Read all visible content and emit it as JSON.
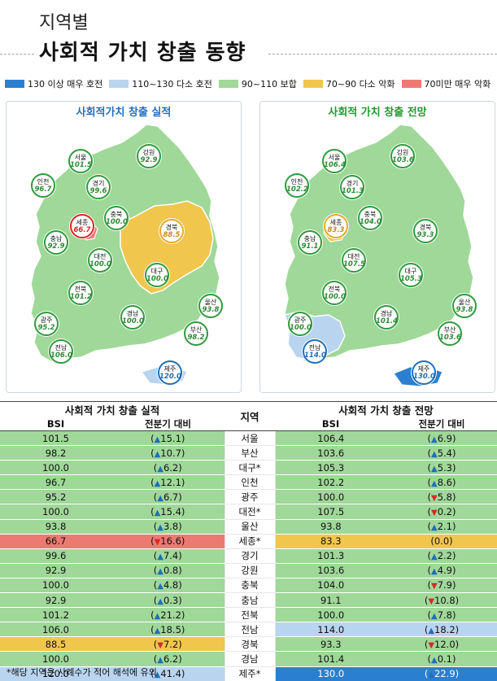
{
  "header": {
    "subtitle": "지역별",
    "title": "사회적 가치 창출 동향"
  },
  "legend": [
    {
      "label": "130 이상 매우 호전",
      "color": "#2b7fd0"
    },
    {
      "label": "110~130 다소 호전",
      "color": "#b9d4ef"
    },
    {
      "label": "90~110 보합",
      "color": "#9fd898"
    },
    {
      "label": "70~90 다소 악화",
      "color": "#f0c64d"
    },
    {
      "label": "70미만 매우 악화",
      "color": "#ec7a72"
    }
  ],
  "map_actual": {
    "title": "사회적가치 창출 실적",
    "badges": [
      {
        "name": "서울",
        "value": "101.5",
        "level": "green"
      },
      {
        "name": "강원",
        "value": "92.9",
        "level": "green"
      },
      {
        "name": "인천",
        "value": "96.7",
        "level": "green"
      },
      {
        "name": "경기",
        "value": "99.6",
        "level": "green"
      },
      {
        "name": "세종",
        "value": "66.7",
        "level": "red"
      },
      {
        "name": "충북",
        "value": "100.0",
        "level": "green"
      },
      {
        "name": "경북",
        "value": "88.5",
        "level": "orange"
      },
      {
        "name": "충남",
        "value": "92.9",
        "level": "green"
      },
      {
        "name": "대전",
        "value": "100.0",
        "level": "green"
      },
      {
        "name": "대구",
        "value": "100.0",
        "level": "green"
      },
      {
        "name": "전북",
        "value": "101.2",
        "level": "green"
      },
      {
        "name": "울산",
        "value": "93.8",
        "level": "green"
      },
      {
        "name": "경남",
        "value": "100.0",
        "level": "green"
      },
      {
        "name": "광주",
        "value": "95.2",
        "level": "green"
      },
      {
        "name": "부산",
        "value": "98.2",
        "level": "green"
      },
      {
        "name": "전남",
        "value": "106.0",
        "level": "green"
      },
      {
        "name": "제주",
        "value": "120.0",
        "level": "blue"
      }
    ]
  },
  "map_forecast": {
    "title": "사회적 가치 창출 전망",
    "badges": [
      {
        "name": "서울",
        "value": "106.4",
        "level": "green"
      },
      {
        "name": "강원",
        "value": "103.6",
        "level": "green"
      },
      {
        "name": "인천",
        "value": "102.2",
        "level": "green"
      },
      {
        "name": "경기",
        "value": "101.3",
        "level": "green"
      },
      {
        "name": "세종",
        "value": "83.3",
        "level": "orange"
      },
      {
        "name": "충북",
        "value": "104.0",
        "level": "green"
      },
      {
        "name": "경북",
        "value": "93.3",
        "level": "green"
      },
      {
        "name": "충남",
        "value": "91.1",
        "level": "green"
      },
      {
        "name": "대전",
        "value": "107.5",
        "level": "green"
      },
      {
        "name": "대구",
        "value": "105.3",
        "level": "green"
      },
      {
        "name": "전북",
        "value": "100.0",
        "level": "green"
      },
      {
        "name": "울산",
        "value": "93.8",
        "level": "green"
      },
      {
        "name": "경남",
        "value": "101.4",
        "level": "green"
      },
      {
        "name": "광주",
        "value": "100.0",
        "level": "green"
      },
      {
        "name": "부산",
        "value": "103.6",
        "level": "green"
      },
      {
        "name": "전남",
        "value": "114.0",
        "level": "blue"
      },
      {
        "name": "제주",
        "value": "130.0",
        "level": "blue"
      }
    ]
  },
  "table": {
    "actual_header": "사회적 가치 창출 실적",
    "forecast_header": "사회적 가치 창출 전망",
    "region_header": "지역",
    "bsi_header": "BSI",
    "prev_header": "전분기 대비",
    "rows": [
      {
        "region": "서울",
        "a_bsi": "101.5",
        "a_dir": "up",
        "a_chg": "15.1",
        "a_color": "green",
        "f_bsi": "106.4",
        "f_dir": "up",
        "f_chg": "6.9",
        "f_color": "green"
      },
      {
        "region": "부산",
        "a_bsi": "98.2",
        "a_dir": "up",
        "a_chg": "10.7",
        "a_color": "green",
        "f_bsi": "103.6",
        "f_dir": "up",
        "f_chg": "5.4",
        "f_color": "green"
      },
      {
        "region": "대구*",
        "a_bsi": "100.0",
        "a_dir": "up",
        "a_chg": "6.2",
        "a_color": "green",
        "f_bsi": "105.3",
        "f_dir": "up",
        "f_chg": "5.3",
        "f_color": "green"
      },
      {
        "region": "인천",
        "a_bsi": "96.7",
        "a_dir": "up",
        "a_chg": "12.1",
        "a_color": "green",
        "f_bsi": "102.2",
        "f_dir": "up",
        "f_chg": "8.6",
        "f_color": "green"
      },
      {
        "region": "광주",
        "a_bsi": "95.2",
        "a_dir": "up",
        "a_chg": "6.7",
        "a_color": "green",
        "f_bsi": "100.0",
        "f_dir": "down",
        "f_chg": "5.8",
        "f_color": "green"
      },
      {
        "region": "대전*",
        "a_bsi": "100.0",
        "a_dir": "up",
        "a_chg": "15.4",
        "a_color": "green",
        "f_bsi": "107.5",
        "f_dir": "down",
        "f_chg": "0.2",
        "f_color": "green"
      },
      {
        "region": "울산",
        "a_bsi": "93.8",
        "a_dir": "up",
        "a_chg": "3.8",
        "a_color": "green",
        "f_bsi": "93.8",
        "f_dir": "up",
        "f_chg": "2.1",
        "f_color": "green"
      },
      {
        "region": "세종*",
        "a_bsi": "66.7",
        "a_dir": "down",
        "a_chg": "16.6",
        "a_color": "red",
        "f_bsi": "83.3",
        "f_dir": "none",
        "f_chg": "0.0",
        "f_color": "orange"
      },
      {
        "region": "경기",
        "a_bsi": "99.6",
        "a_dir": "up",
        "a_chg": "7.4",
        "a_color": "green",
        "f_bsi": "101.3",
        "f_dir": "up",
        "f_chg": "2.2",
        "f_color": "green"
      },
      {
        "region": "강원",
        "a_bsi": "92.9",
        "a_dir": "up",
        "a_chg": "0.8",
        "a_color": "green",
        "f_bsi": "103.6",
        "f_dir": "up",
        "f_chg": "4.9",
        "f_color": "green"
      },
      {
        "region": "충북",
        "a_bsi": "100.0",
        "a_dir": "up",
        "a_chg": "4.8",
        "a_color": "green",
        "f_bsi": "104.0",
        "f_dir": "down",
        "f_chg": "7.9",
        "f_color": "green"
      },
      {
        "region": "충남",
        "a_bsi": "92.9",
        "a_dir": "up",
        "a_chg": "0.3",
        "a_color": "green",
        "f_bsi": "91.1",
        "f_dir": "down",
        "f_chg": "10.8",
        "f_color": "green"
      },
      {
        "region": "전북",
        "a_bsi": "101.2",
        "a_dir": "up",
        "a_chg": "21.2",
        "a_color": "green",
        "f_bsi": "100.0",
        "f_dir": "up",
        "f_chg": "7.8",
        "f_color": "green"
      },
      {
        "region": "전남",
        "a_bsi": "106.0",
        "a_dir": "up",
        "a_chg": "18.5",
        "a_color": "green",
        "f_bsi": "114.0",
        "f_dir": "up",
        "f_chg": "18.2",
        "f_color": "lblue"
      },
      {
        "region": "경북",
        "a_bsi": "88.5",
        "a_dir": "down",
        "a_chg": "7.2",
        "a_color": "orange",
        "f_bsi": "93.3",
        "f_dir": "down",
        "f_chg": "12.0",
        "f_color": "green"
      },
      {
        "region": "경남",
        "a_bsi": "100.0",
        "a_dir": "up",
        "a_chg": "6.2",
        "a_color": "green",
        "f_bsi": "101.4",
        "f_dir": "up",
        "f_chg": "0.1",
        "f_color": "green"
      },
      {
        "region": "제주*",
        "a_bsi": "120.0",
        "a_dir": "up",
        "a_chg": "41.4",
        "a_color": "lblue",
        "f_bsi": "130.0",
        "f_dir": "up",
        "f_chg": "22.9",
        "f_color": "blue"
      }
    ]
  },
  "footnote": "*해당 지역은 사례수가 적어 해석에 유의"
}
